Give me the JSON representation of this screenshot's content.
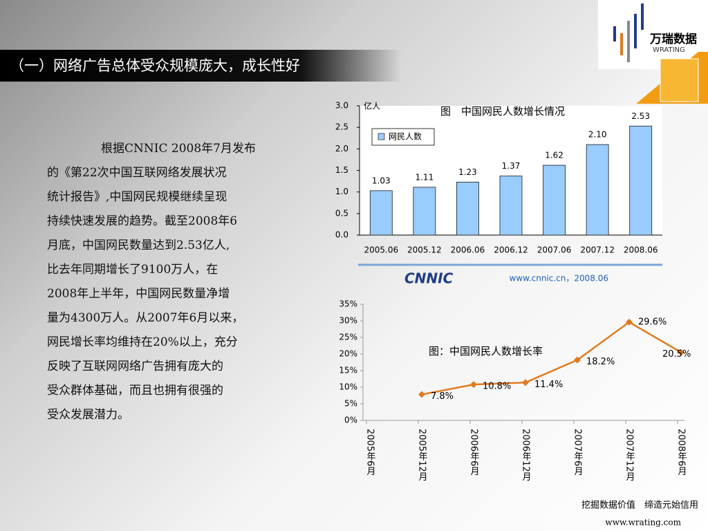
{
  "header": {
    "title": "（一）网络广告总体受众规模庞大，成长性好"
  },
  "logo": {
    "name": "万瑞数据",
    "sub": "WRATING"
  },
  "body": {
    "lines": [
      "根据CNNIC 2008年7月发布",
      "的《第22次中国互联网络发展状况",
      "统计报告》,中国网民规模继续呈现",
      "持续快速发展的趋势。截至2008年6",
      "月底，中国网民数量达到2.53亿人,",
      "比去年同期增长了9100万人，在",
      "2008年上半年，中国网民数量净增",
      "量为4300万人。从2007年6月以来，",
      "网民增长率均维持在20%以上，充分",
      "反映了互联网网络广告拥有庞大的",
      "受众群体基础，而且也拥有很强的",
      "受众发展潜力。"
    ]
  },
  "chart_data": [
    {
      "type": "bar",
      "title": "图　中国网民人数增长情况",
      "y_label": "亿人",
      "categories": [
        "2005.06",
        "2005.12",
        "2006.06",
        "2006.12",
        "2007.06",
        "2007.12",
        "2008.06"
      ],
      "series": [
        {
          "name": "网民人数",
          "color": "#99ccff",
          "values": [
            1.03,
            1.11,
            1.23,
            1.37,
            1.62,
            2.1,
            2.53
          ],
          "value_labels": [
            "1.03",
            "1.11",
            "1.23",
            "1.37",
            "1.62",
            "2.10",
            "2.53"
          ]
        }
      ],
      "ylim": [
        0,
        3
      ],
      "yticks": [
        {
          "value": 0,
          "label": "0.0"
        },
        {
          "value": 0.5,
          "label": "0.5"
        },
        {
          "value": 1,
          "label": "1.0"
        },
        {
          "value": 1.5,
          "label": "1.5"
        },
        {
          "value": 2,
          "label": "2.0"
        },
        {
          "value": 2.5,
          "label": "2.5"
        },
        {
          "value": 3,
          "label": "3.0"
        }
      ],
      "legend": "top-left"
    },
    {
      "type": "line",
      "title": "图：中国网民人数增长率",
      "categories": [
        "2005年6月",
        "2005年12月",
        "2006年6月",
        "2006年12月",
        "2007年6月",
        "2007年12月",
        "2008年6月"
      ],
      "series": [
        {
          "name": null,
          "color": "#e07b20",
          "values": [
            null,
            7.8,
            10.8,
            11.4,
            18.2,
            29.6,
            20.5
          ],
          "value_labels": [
            null,
            "7.8%",
            "10.8%",
            "11.4%",
            "18.2%",
            "29.6%",
            "20.5%"
          ]
        }
      ],
      "ylim": [
        0,
        35
      ],
      "yticks": [
        {
          "value": 0,
          "label": "0%"
        },
        {
          "value": 5,
          "label": "5%"
        },
        {
          "value": 10,
          "label": "10%"
        },
        {
          "value": 15,
          "label": "15%"
        },
        {
          "value": 20,
          "label": "20%"
        },
        {
          "value": 25,
          "label": "25%"
        },
        {
          "value": 30,
          "label": "30%"
        },
        {
          "value": 35,
          "label": "35%"
        }
      ]
    }
  ],
  "source": {
    "logo": "CNNIC",
    "text": "www.cnnic.cn，2008.06"
  },
  "footer": {
    "slogan": "挖掘数据价值　缔造元始信用",
    "url": "www.wrating.com"
  }
}
